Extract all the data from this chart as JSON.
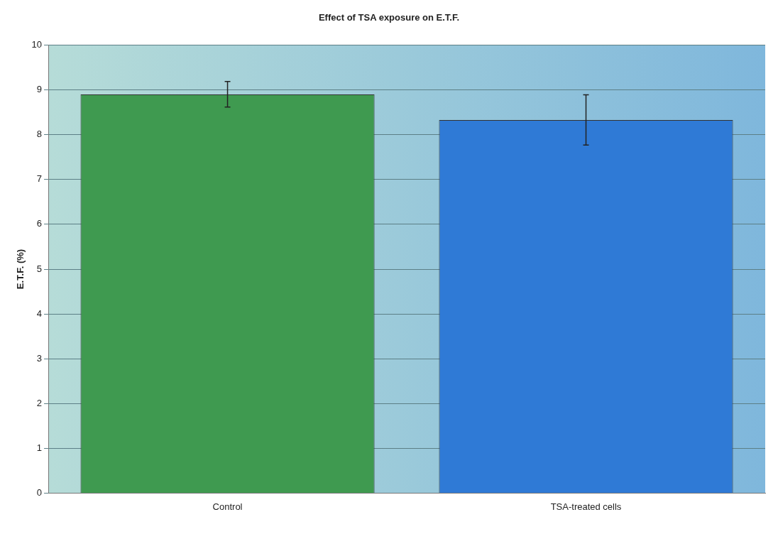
{
  "chart_data": {
    "type": "bar",
    "title": "Effect of TSA exposure on E.T.F.",
    "ylabel": "E.T.F. (%)",
    "categories": [
      "Control",
      "TSA-treated cells"
    ],
    "values": [
      8.9,
      8.33
    ],
    "colors": [
      "#3f9a50",
      "#2f7ad6"
    ],
    "errors": [
      [
        8.62,
        9.19
      ],
      [
        7.77,
        8.89
      ]
    ],
    "ylim": [
      0,
      10
    ],
    "yticks": [
      0,
      1,
      2,
      3,
      4,
      5,
      6,
      7,
      8,
      9,
      10
    ],
    "grid": "y",
    "legend": false
  }
}
